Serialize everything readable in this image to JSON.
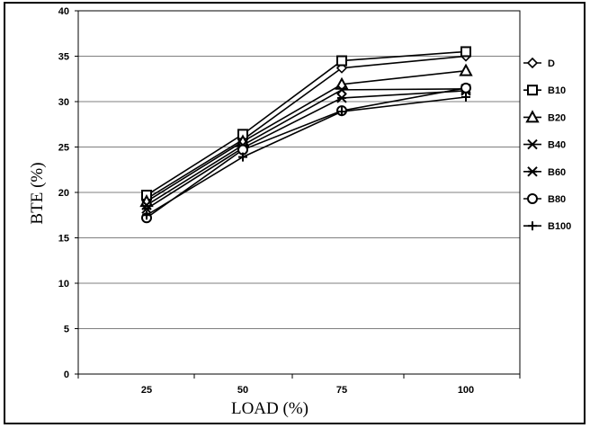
{
  "chart_data": {
    "type": "line",
    "xlabel": "LOAD (%)",
    "ylabel": "BTE (%)",
    "categories": [
      "25",
      "50",
      "75",
      "100"
    ],
    "ylim": [
      0,
      40
    ],
    "yticks": [
      0,
      5,
      10,
      15,
      20,
      25,
      30,
      35,
      40
    ],
    "grid": "horizontal",
    "legend_position": "right",
    "series": [
      {
        "name": "D",
        "marker": "diamond",
        "values": [
          19.3,
          25.8,
          33.7,
          35.0
        ]
      },
      {
        "name": "B10",
        "marker": "square",
        "values": [
          19.7,
          26.4,
          34.5,
          35.5
        ]
      },
      {
        "name": "B20",
        "marker": "triangle",
        "values": [
          19.0,
          25.6,
          31.9,
          33.4
        ]
      },
      {
        "name": "B40",
        "marker": "x",
        "values": [
          18.6,
          25.2,
          31.3,
          31.4
        ]
      },
      {
        "name": "B60",
        "marker": "asterisk",
        "values": [
          18.2,
          24.9,
          30.4,
          31.2
        ]
      },
      {
        "name": "B80",
        "marker": "circle",
        "values": [
          17.2,
          24.7,
          29.0,
          31.5
        ]
      },
      {
        "name": "B100",
        "marker": "plus",
        "values": [
          17.5,
          23.9,
          28.9,
          30.5
        ]
      }
    ]
  }
}
